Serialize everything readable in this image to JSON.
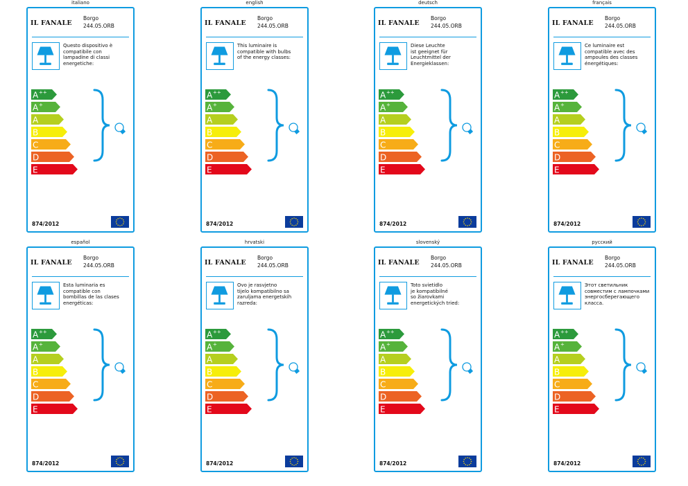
{
  "brand": "IL FANALE",
  "product": {
    "name": "Borgo",
    "code": "244.05.ORB"
  },
  "regulation": "874/2012",
  "energy_classes": [
    {
      "letter": "A",
      "sup": "++",
      "color": "#2c9a3c"
    },
    {
      "letter": "A",
      "sup": "+",
      "color": "#56b33b"
    },
    {
      "letter": "A",
      "sup": "",
      "color": "#b5cf1f"
    },
    {
      "letter": "B",
      "sup": "",
      "color": "#f6ee0a"
    },
    {
      "letter": "C",
      "sup": "",
      "color": "#f7ac18"
    },
    {
      "letter": "D",
      "sup": "",
      "color": "#ec6324"
    },
    {
      "letter": "E",
      "sup": "",
      "color": "#e3091b"
    }
  ],
  "colors": {
    "frame": "#0f9be0",
    "eu_flag": "#0b3c9c",
    "eu_stars": "#f5d20a"
  },
  "icons": {
    "lamp": "table-lamp-icon",
    "bulb": "light-bulb-icon",
    "flag": "eu-flag-icon"
  },
  "panels": [
    {
      "lang": "italiano",
      "lines": [
        "Questo dispositivo è",
        "compatibile con",
        "lampadine di classi",
        "energetiche:"
      ]
    },
    {
      "lang": "english",
      "lines": [
        "This luminaire is",
        "compatible with bulbs",
        "of the energy classes:"
      ]
    },
    {
      "lang": "deutsch",
      "lines": [
        "Diese Leuchte",
        "ist geeignet für",
        "Leuchtmittel der",
        "Energieklassen:"
      ]
    },
    {
      "lang": "français",
      "lines": [
        "Ce luminaire est",
        "compatible avec des",
        "ampoules des classes",
        "énergétiques:"
      ]
    },
    {
      "lang": "español",
      "lines": [
        "Esta luminaria es",
        "compatible con",
        "bombillas de las clases",
        "energéticas:"
      ]
    },
    {
      "lang": "hrvatski",
      "lines": [
        "Ovo je rasvjetno",
        "tijelo kompatibilno sa",
        "zaruljama energetskih",
        "razreda:"
      ]
    },
    {
      "lang": "slovenský",
      "lines": [
        "Toto svietidlo",
        "je kompatibilné",
        "so žiarovkami",
        "energetických tried:"
      ]
    },
    {
      "lang": "русский",
      "lines": [
        "Этот светильник",
        "совместим с лампочками",
        "энергосберегающего",
        "класса."
      ]
    }
  ]
}
